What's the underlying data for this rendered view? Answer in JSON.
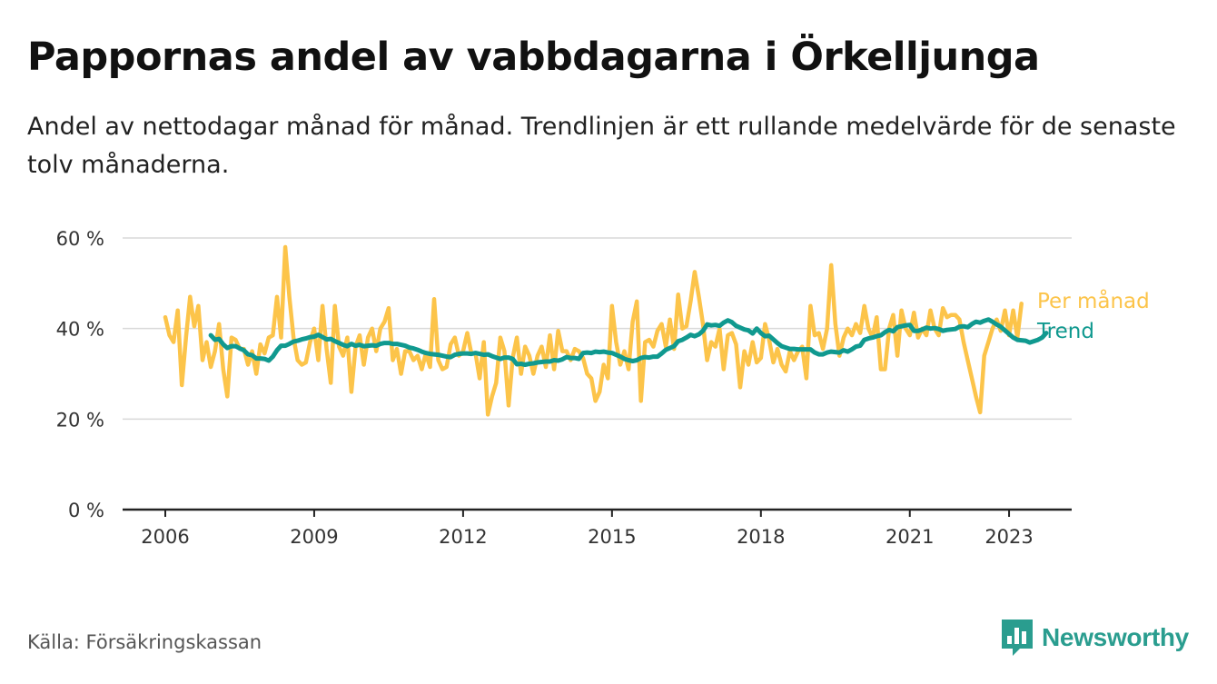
{
  "header": {
    "title": "Pappornas andel av vabbdagarna i Örkelljunga",
    "subtitle": "Andel av nettodagar månad för månad. Trendlinjen är ett rullande medelvärde för de senaste tolv månaderna."
  },
  "footer": {
    "source": "Källa: Försäkringskassan",
    "brand": "Newsworthy",
    "brand_icon": "bar-chart-speech-bubble-icon"
  },
  "colors": {
    "monthly": "#fcc44a",
    "trend": "#10998f",
    "grid": "#d9d9d9",
    "axis": "#222222",
    "brand": "#2a9d8f"
  },
  "chart_data": {
    "type": "line",
    "title": "Pappornas andel av vabbdagarna i Örkelljunga",
    "xlabel": "",
    "ylabel": "",
    "x_start": "2006-01",
    "x_ticks": [
      2006,
      2009,
      2012,
      2015,
      2018,
      2021,
      2023
    ],
    "x_tick_labels": [
      "2006",
      "2009",
      "2012",
      "2015",
      "2018",
      "2021",
      "2023"
    ],
    "y_ticks": [
      0,
      20,
      40,
      60
    ],
    "y_tick_labels": [
      "0 %",
      "20 %",
      "40 %",
      "60 %"
    ],
    "ylim": [
      0,
      60
    ],
    "xlim": [
      "2005-03",
      "2024-02"
    ],
    "grid": true,
    "legend": "right-end labels",
    "series": [
      {
        "name": "Per månad",
        "start": "2006-01",
        "values": [
          42.5,
          38.5,
          37.0,
          44.0,
          27.5,
          38.0,
          47.0,
          40.5,
          45.0,
          33.0,
          37.0,
          31.5,
          35.0,
          41.0,
          31.0,
          25.0,
          38.0,
          37.5,
          35.5,
          35.5,
          32.0,
          35.0,
          30.0,
          36.5,
          34.5,
          38.0,
          38.5,
          47.0,
          38.0,
          58.0,
          47.0,
          38.0,
          33.0,
          32.0,
          32.5,
          37.0,
          40.0,
          33.0,
          45.0,
          35.5,
          28.0,
          45.0,
          36.0,
          34.0,
          38.0,
          26.0,
          36.0,
          38.5,
          32.0,
          38.0,
          40.0,
          35.0,
          40.0,
          41.5,
          44.5,
          33.0,
          35.5,
          30.0,
          35.0,
          35.0,
          33.0,
          34.0,
          31.0,
          34.5,
          31.5,
          46.5,
          33.0,
          31.0,
          31.5,
          36.5,
          38.0,
          34.0,
          35.0,
          39.0,
          34.5,
          34.5,
          29.0,
          37.0,
          21.0,
          25.0,
          28.0,
          38.0,
          35.0,
          23.0,
          33.5,
          38.0,
          30.0,
          36.0,
          34.0,
          30.0,
          34.0,
          36.0,
          31.5,
          38.5,
          31.0,
          39.5,
          35.0,
          35.0,
          33.0,
          35.5,
          35.0,
          33.5,
          30.0,
          29.0,
          24.0,
          26.0,
          32.0,
          29.0,
          45.0,
          37.0,
          32.0,
          35.0,
          31.0,
          41.5,
          46.0,
          24.0,
          37.0,
          37.5,
          36.0,
          39.5,
          41.0,
          36.0,
          42.0,
          35.5,
          47.5,
          40.0,
          40.5,
          46.0,
          52.5,
          47.0,
          41.0,
          33.0,
          37.0,
          36.0,
          40.0,
          31.0,
          38.5,
          39.0,
          36.5,
          27.0,
          35.0,
          32.0,
          37.0,
          32.5,
          33.5,
          41.0,
          37.5,
          32.5,
          35.5,
          32.0,
          30.5,
          35.0,
          33.0,
          35.0,
          36.0,
          29.0,
          45.0,
          38.5,
          39.0,
          35.5,
          40.0,
          54.0,
          41.0,
          34.0,
          38.0,
          40.0,
          38.5,
          41.0,
          39.0,
          45.0,
          40.0,
          38.0,
          42.5,
          31.0,
          31.0,
          40.0,
          43.0,
          34.0,
          44.0,
          40.0,
          38.5,
          43.5,
          38.0,
          40.0,
          38.5,
          44.0,
          40.0,
          38.5,
          44.5,
          42.5,
          43.0,
          43.0,
          42.0,
          37.0,
          33.0,
          29.0,
          25.0,
          21.5,
          34.0,
          37.0,
          40.0,
          42.0,
          39.5,
          44.0,
          38.5,
          44.0,
          38.0,
          45.5
        ]
      },
      {
        "name": "Trend",
        "start": "2006-12",
        "values": [
          38.5,
          37.5,
          37.7,
          36.5,
          35.7,
          36.1,
          36.1,
          35.6,
          35.2,
          34.3,
          34.1,
          33.4,
          33.4,
          33.3,
          32.9,
          33.8,
          35.2,
          36.2,
          36.2,
          36.6,
          37.1,
          37.3,
          37.6,
          37.8,
          38.1,
          38.2,
          38.6,
          38.1,
          37.6,
          37.7,
          37.2,
          36.8,
          36.4,
          36.1,
          36.6,
          36.2,
          36.4,
          36.1,
          36.2,
          36.3,
          36.2,
          36.6,
          36.8,
          36.8,
          36.6,
          36.6,
          36.4,
          36.2,
          35.8,
          35.6,
          35.3,
          34.9,
          34.6,
          34.4,
          34.3,
          34.2,
          34.0,
          33.8,
          33.7,
          34.2,
          34.4,
          34.5,
          34.5,
          34.4,
          34.6,
          34.4,
          34.2,
          34.3,
          33.9,
          33.6,
          33.3,
          33.6,
          33.6,
          33.3,
          32.1,
          32.2,
          32.0,
          32.2,
          32.3,
          32.5,
          32.6,
          32.7,
          32.7,
          33.0,
          32.9,
          33.2,
          33.7,
          33.5,
          33.5,
          33.3,
          34.6,
          34.7,
          34.6,
          34.9,
          34.8,
          34.9,
          34.7,
          34.6,
          34.2,
          33.8,
          33.3,
          33.0,
          32.8,
          33.0,
          33.5,
          33.7,
          33.6,
          33.8,
          33.8,
          34.5,
          35.3,
          35.7,
          36.1,
          37.2,
          37.5,
          38.0,
          38.6,
          38.3,
          38.7,
          39.5,
          40.9,
          40.7,
          40.8,
          40.6,
          41.3,
          41.8,
          41.4,
          40.6,
          40.2,
          39.8,
          39.6,
          38.9,
          40.0,
          39.0,
          38.3,
          38.4,
          37.6,
          36.8,
          36.1,
          35.8,
          35.5,
          35.5,
          35.4,
          35.4,
          35.4,
          35.4,
          34.7,
          34.3,
          34.3,
          34.7,
          34.9,
          34.8,
          34.7,
          35.2,
          34.9,
          35.4,
          36.0,
          36.2,
          37.5,
          37.8,
          38.0,
          38.3,
          38.5,
          39.2,
          39.7,
          39.4,
          40.3,
          40.5,
          40.7,
          40.8,
          39.5,
          39.5,
          39.8,
          40.2,
          40.0,
          40.1,
          39.9,
          39.5,
          39.7,
          39.8,
          39.9,
          40.4,
          40.5,
          40.3,
          41.0,
          41.5,
          41.3,
          41.7,
          42.0,
          41.5,
          40.9,
          40.4,
          39.6,
          38.8,
          38.0,
          37.5,
          37.4,
          37.3,
          36.9,
          37.2,
          37.5,
          38.0,
          39.0
        ]
      }
    ],
    "legend_labels": [
      "Per månad",
      "Trend"
    ]
  }
}
